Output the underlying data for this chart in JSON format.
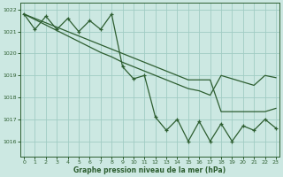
{
  "title": "Graphe pression niveau de la mer (hPa)",
  "bg_color": "#cce8e2",
  "grid_color": "#a0ccC4",
  "line_color": "#2d5e30",
  "xlim": [
    -0.3,
    23.3
  ],
  "ylim": [
    1015.3,
    1022.3
  ],
  "yticks": [
    1016,
    1017,
    1018,
    1019,
    1020,
    1021,
    1022
  ],
  "xticks": [
    0,
    1,
    2,
    3,
    4,
    5,
    6,
    7,
    8,
    9,
    10,
    11,
    12,
    13,
    14,
    15,
    16,
    17,
    18,
    19,
    20,
    21,
    22,
    23
  ],
  "main_data": [
    1021.8,
    1021.1,
    1021.7,
    1021.1,
    1021.6,
    1021.0,
    1021.5,
    1021.1,
    1021.8,
    1019.4,
    1018.85,
    1019.0,
    1017.1,
    1016.5,
    1017.0,
    1016.0,
    1016.9,
    1016.0,
    1016.8,
    1016.0,
    1016.7,
    1016.5,
    1017.0,
    1016.6
  ],
  "upper_trend": [
    1021.8,
    1021.6,
    1021.4,
    1021.2,
    1021.0,
    1020.8,
    1020.6,
    1020.4,
    1020.2,
    1020.0,
    1019.8,
    1019.6,
    1019.4,
    1019.2,
    1019.0,
    1018.8,
    1018.8,
    1018.8,
    1017.35,
    1017.35,
    1017.35,
    1017.35,
    1017.35,
    1017.5
  ],
  "upper_trend2": [
    1021.8,
    1021.55,
    1021.3,
    1021.05,
    1020.8,
    1020.55,
    1020.3,
    1020.05,
    1019.85,
    1019.6,
    1019.4,
    1019.2,
    1019.0,
    1018.8,
    1018.6,
    1018.4,
    1018.3,
    1018.1,
    1019.0,
    1018.85,
    1018.7,
    1018.55,
    1019.0,
    1018.9
  ],
  "hour_labels": [
    "0",
    "1",
    "2",
    "3",
    "4",
    "5",
    "6",
    "7",
    "8",
    "9",
    "10",
    "11",
    "12",
    "13",
    "14",
    "15",
    "16",
    "17",
    "18",
    "19",
    "20",
    "21",
    "22",
    "23"
  ]
}
